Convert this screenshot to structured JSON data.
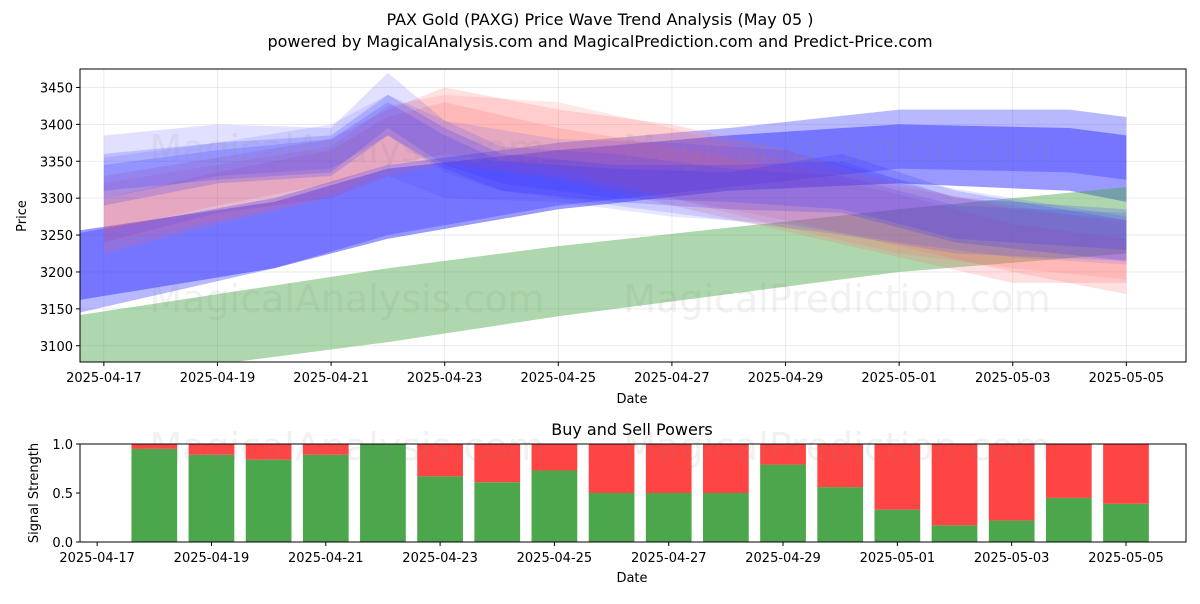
{
  "title_line1": "PAX Gold (PAXG) Price Wave Trend Analysis (May 05 )",
  "title_line2": "powered by MagicalAnalysis.com and MagicalPrediction.com and Predict-Price.com",
  "watermarks": [
    "MagicalAnalysis.com",
    "MagicalPrediction.com"
  ],
  "colors": {
    "buy": "#4ca64c",
    "sell": "#ff4444",
    "wave_blue": "#3333ff",
    "wave_red": "#ff6666",
    "wave_green": "#4ca64c"
  },
  "chart_data": [
    {
      "type": "area",
      "xlabel": "Date",
      "ylabel": "Price",
      "ylim": [
        3078,
        3475
      ],
      "xlim": [
        "2025-04-16",
        "2025-05-06"
      ],
      "x_ticks": [
        "2025-04-17",
        "2025-04-19",
        "2025-04-21",
        "2025-04-23",
        "2025-04-25",
        "2025-04-27",
        "2025-04-29",
        "2025-05-01",
        "2025-05-03",
        "2025-05-05"
      ],
      "y_ticks": [
        3100,
        3150,
        3200,
        3250,
        3300,
        3350,
        3400,
        3450
      ],
      "grid": true,
      "bands": [
        {
          "color": "blue",
          "opacity": 0.5,
          "x": [
            "2025-04-16",
            "2025-04-20",
            "2025-04-22",
            "2025-04-25",
            "2025-04-28",
            "2025-05-01",
            "2025-05-04",
            "2025-05-05"
          ],
          "upper": [
            3250,
            3295,
            3340,
            3365,
            3385,
            3400,
            3395,
            3385
          ],
          "lower": [
            3155,
            3205,
            3245,
            3285,
            3310,
            3320,
            3310,
            3295
          ]
        },
        {
          "color": "blue",
          "opacity": 0.35,
          "x": [
            "2025-04-16",
            "2025-04-20",
            "2025-04-22",
            "2025-04-25",
            "2025-04-28",
            "2025-05-01",
            "2025-05-04",
            "2025-05-05"
          ],
          "upper": [
            3245,
            3300,
            3345,
            3375,
            3395,
            3420,
            3420,
            3410
          ],
          "lower": [
            3135,
            3205,
            3250,
            3290,
            3315,
            3340,
            3335,
            3325
          ]
        },
        {
          "color": "green",
          "opacity": 0.45,
          "x": [
            "2025-04-16",
            "2025-04-19",
            "2025-04-22",
            "2025-04-25",
            "2025-04-28",
            "2025-05-01",
            "2025-05-05"
          ],
          "upper": [
            3135,
            3170,
            3205,
            3235,
            3260,
            3285,
            3315
          ],
          "lower": [
            3040,
            3075,
            3105,
            3140,
            3170,
            3200,
            3225
          ]
        },
        {
          "color": "red",
          "opacity": 0.2,
          "x": [
            "2025-04-17",
            "2025-04-19",
            "2025-04-21",
            "2025-04-22",
            "2025-04-23",
            "2025-04-25",
            "2025-04-27",
            "2025-04-29",
            "2025-05-01",
            "2025-05-03",
            "2025-05-05"
          ],
          "upper": [
            3330,
            3355,
            3380,
            3420,
            3450,
            3420,
            3400,
            3365,
            3320,
            3285,
            3270
          ],
          "lower": [
            3255,
            3290,
            3320,
            3345,
            3360,
            3340,
            3300,
            3270,
            3235,
            3200,
            3170
          ]
        },
        {
          "color": "red",
          "opacity": 0.2,
          "x": [
            "2025-04-17",
            "2025-04-19",
            "2025-04-21",
            "2025-04-22",
            "2025-04-23",
            "2025-04-25",
            "2025-04-27",
            "2025-04-29",
            "2025-05-01",
            "2025-05-03",
            "2025-05-05"
          ],
          "upper": [
            3300,
            3335,
            3365,
            3410,
            3430,
            3395,
            3370,
            3340,
            3305,
            3265,
            3245
          ],
          "lower": [
            3225,
            3265,
            3300,
            3330,
            3345,
            3325,
            3290,
            3255,
            3220,
            3185,
            3185
          ]
        },
        {
          "color": "red",
          "opacity": 0.15,
          "x": [
            "2025-04-17",
            "2025-04-19",
            "2025-04-21",
            "2025-04-22",
            "2025-04-23",
            "2025-04-25",
            "2025-04-27",
            "2025-04-29",
            "2025-05-01",
            "2025-05-03",
            "2025-05-05"
          ],
          "upper": [
            3320,
            3345,
            3370,
            3425,
            3440,
            3430,
            3395,
            3350,
            3315,
            3290,
            3265
          ],
          "lower": [
            3240,
            3270,
            3305,
            3340,
            3350,
            3330,
            3300,
            3260,
            3225,
            3205,
            3190
          ]
        },
        {
          "color": "blue",
          "opacity": 0.15,
          "x": [
            "2025-04-17",
            "2025-04-19",
            "2025-04-21",
            "2025-04-22",
            "2025-04-23",
            "2025-04-24",
            "2025-04-26",
            "2025-04-28",
            "2025-04-30",
            "2025-05-02",
            "2025-05-05"
          ],
          "upper": [
            3385,
            3400,
            3395,
            3470,
            3405,
            3370,
            3360,
            3340,
            3330,
            3290,
            3280
          ],
          "lower": [
            3300,
            3330,
            3340,
            3385,
            3335,
            3310,
            3290,
            3270,
            3250,
            3225,
            3215
          ]
        },
        {
          "color": "blue",
          "opacity": 0.2,
          "x": [
            "2025-04-17",
            "2025-04-19",
            "2025-04-21",
            "2025-04-22",
            "2025-04-23",
            "2025-04-24",
            "2025-04-26",
            "2025-04-28",
            "2025-04-30",
            "2025-05-02",
            "2025-05-05"
          ],
          "upper": [
            3360,
            3375,
            3385,
            3440,
            3395,
            3360,
            3345,
            3345,
            3350,
            3300,
            3285
          ],
          "lower": [
            3310,
            3325,
            3335,
            3395,
            3345,
            3320,
            3300,
            3295,
            3285,
            3245,
            3230
          ]
        },
        {
          "color": "blue",
          "opacity": 0.2,
          "x": [
            "2025-04-17",
            "2025-04-19",
            "2025-04-21",
            "2025-04-22",
            "2025-04-23",
            "2025-04-24",
            "2025-04-26",
            "2025-04-28",
            "2025-04-30",
            "2025-05-02",
            "2025-05-05"
          ],
          "upper": [
            3345,
            3365,
            3380,
            3430,
            3385,
            3350,
            3340,
            3335,
            3360,
            3310,
            3270
          ],
          "lower": [
            3290,
            3320,
            3330,
            3385,
            3340,
            3310,
            3295,
            3285,
            3280,
            3240,
            3215
          ]
        },
        {
          "color": "blue",
          "opacity": 0.12,
          "x": [
            "2025-04-17",
            "2025-04-19",
            "2025-04-21",
            "2025-04-22",
            "2025-04-23",
            "2025-04-25",
            "2025-04-27",
            "2025-04-29",
            "2025-05-01",
            "2025-05-03",
            "2025-05-05"
          ],
          "upper": [
            3355,
            3375,
            3400,
            3440,
            3405,
            3380,
            3375,
            3365,
            3325,
            3300,
            3275
          ],
          "lower": [
            3240,
            3280,
            3300,
            3330,
            3300,
            3295,
            3275,
            3265,
            3240,
            3220,
            3210
          ]
        }
      ]
    },
    {
      "type": "bar",
      "title": "Buy and Sell Powers",
      "xlabel": "Date",
      "ylabel": "Signal Strength",
      "ylim": [
        0,
        1
      ],
      "xlim": [
        "2025-04-16.7",
        "2025-05-06"
      ],
      "x_ticks": [
        "2025-04-17",
        "2025-04-19",
        "2025-04-21",
        "2025-04-23",
        "2025-04-25",
        "2025-04-27",
        "2025-04-29",
        "2025-05-01",
        "2025-05-03",
        "2025-05-05"
      ],
      "y_ticks": [
        "0.0",
        "0.5",
        "1.0"
      ],
      "categories": [
        "2025-04-18",
        "2025-04-19",
        "2025-04-20",
        "2025-04-21",
        "2025-04-22",
        "2025-04-23",
        "2025-04-24",
        "2025-04-25",
        "2025-04-26",
        "2025-04-27",
        "2025-04-28",
        "2025-04-29",
        "2025-04-30",
        "2025-05-01",
        "2025-05-02",
        "2025-05-03",
        "2025-05-04",
        "2025-05-05"
      ],
      "series": [
        {
          "name": "buy",
          "values": [
            0.95,
            0.89,
            0.84,
            0.89,
            1.0,
            0.67,
            0.61,
            0.73,
            0.5,
            0.5,
            0.5,
            0.79,
            0.56,
            0.33,
            0.17,
            0.22,
            0.45,
            0.39
          ]
        },
        {
          "name": "sell",
          "values": [
            0.05,
            0.11,
            0.16,
            0.11,
            0.0,
            0.33,
            0.39,
            0.27,
            0.5,
            0.5,
            0.5,
            0.21,
            0.44,
            0.67,
            0.83,
            0.78,
            0.55,
            0.61
          ]
        }
      ]
    }
  ]
}
